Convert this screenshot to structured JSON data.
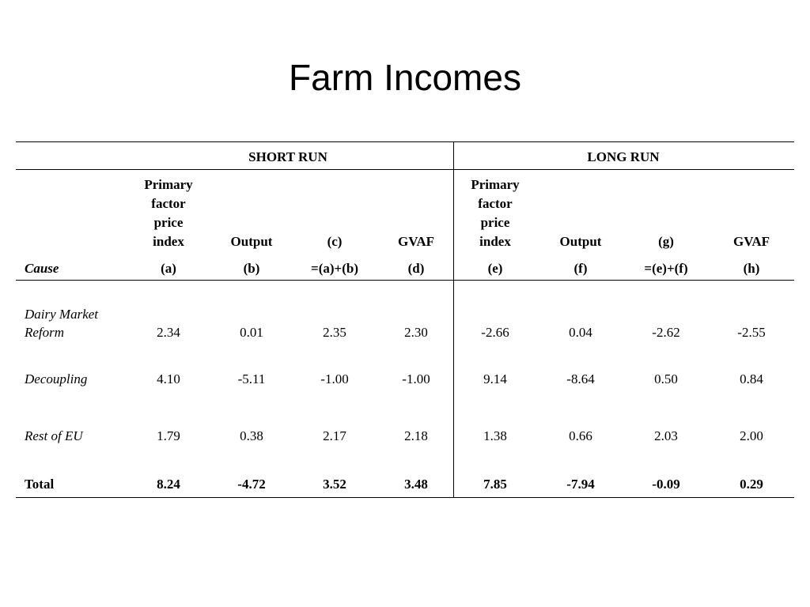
{
  "slide": {
    "title": "Farm Incomes"
  },
  "table": {
    "group_headers": {
      "short_run": "SHORT RUN",
      "long_run": "LONG RUN"
    },
    "column_headers": {
      "a_line1": "Primary",
      "a_line2": "factor",
      "a_line3": "price",
      "a_line4": "index",
      "b": "Output",
      "c": "(c)",
      "d": "GVAF",
      "e_line1": "Primary",
      "e_line2": "factor",
      "e_line3": "price",
      "e_line4": "index",
      "f": "Output",
      "g": "(g)",
      "h": "GVAF"
    },
    "sub_headers": {
      "cause": "Cause",
      "a": "(a)",
      "b": "(b)",
      "c": "=(a)+(b)",
      "d": "(d)",
      "e": "(e)",
      "f": "(f)",
      "g": "=(e)+(f)",
      "h": "(h)"
    },
    "rows": [
      {
        "cause_line1": "Dairy Market",
        "cause_line2": "Reform",
        "values": [
          "2.34",
          "0.01",
          "2.35",
          "2.30",
          "-2.66",
          "0.04",
          "-2.62",
          "-2.55"
        ]
      },
      {
        "cause_line1": "Decoupling",
        "values": [
          "4.10",
          "-5.11",
          "-1.00",
          "-1.00",
          "9.14",
          "-8.64",
          "0.50",
          "0.84"
        ]
      },
      {
        "cause_line1": "Rest of EU",
        "values": [
          "1.79",
          "0.38",
          "2.17",
          "2.18",
          "1.38",
          "0.66",
          "2.03",
          "2.00"
        ]
      },
      {
        "cause_line1": "Total",
        "values": [
          "8.24",
          "-4.72",
          "3.52",
          "3.48",
          "7.85",
          "-7.94",
          "-0.09",
          "0.29"
        ]
      }
    ]
  }
}
